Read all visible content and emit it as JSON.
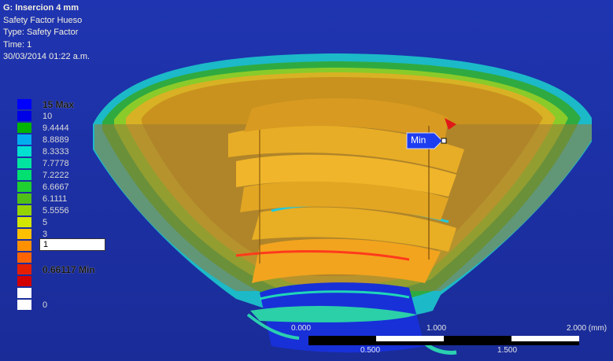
{
  "info": {
    "title": "G: Insercion 4 mm",
    "result": "Safety Factor Hueso",
    "type": "Type: Safety Factor",
    "time": "Time: 1",
    "date": "30/03/2014 01:22 a.m."
  },
  "legend": {
    "max_label": "15 Max",
    "min_label": "0.66117 Min",
    "probe_value": "1",
    "levels": [
      {
        "label": "15 Max",
        "color": "#0000ff",
        "bold": true
      },
      {
        "label": "10",
        "color": "#0000e6"
      },
      {
        "label": "9.4444",
        "color": "#00b400"
      },
      {
        "label": "8.8889",
        "color": "#00aef0"
      },
      {
        "label": "8.3333",
        "color": "#00e0d0"
      },
      {
        "label": "7.7778",
        "color": "#00e6a0"
      },
      {
        "label": "7.2222",
        "color": "#00e070"
      },
      {
        "label": "6.6667",
        "color": "#20d030"
      },
      {
        "label": "6.1111",
        "color": "#50c018"
      },
      {
        "label": "5.5556",
        "color": "#96d400"
      },
      {
        "label": "5",
        "color": "#d2e600"
      },
      {
        "label": "3",
        "color": "#ffc000"
      },
      {
        "label": "",
        "color": "#ff9000"
      },
      {
        "label": "",
        "color": "#ff6400"
      },
      {
        "label": "0.66117 Min",
        "color": "#e61e00",
        "bold": true
      },
      {
        "label": "",
        "color": "#d20000"
      },
      {
        "label": "",
        "color": "#ffffff"
      },
      {
        "label": "0",
        "color": "#ffffff"
      }
    ]
  },
  "min_marker": "Min",
  "scale_bar": {
    "top_ticks": [
      "0.000",
      "1.000",
      "2.000 (mm)"
    ],
    "bottom_ticks": [
      "0.500",
      "1.500"
    ]
  },
  "colors": {
    "background": "#1b2fa0",
    "bone_outer": "#2bb04a",
    "bone_mid": "#e0b020",
    "screw": "#d49a1c",
    "min_flag": "#1d3df0"
  }
}
